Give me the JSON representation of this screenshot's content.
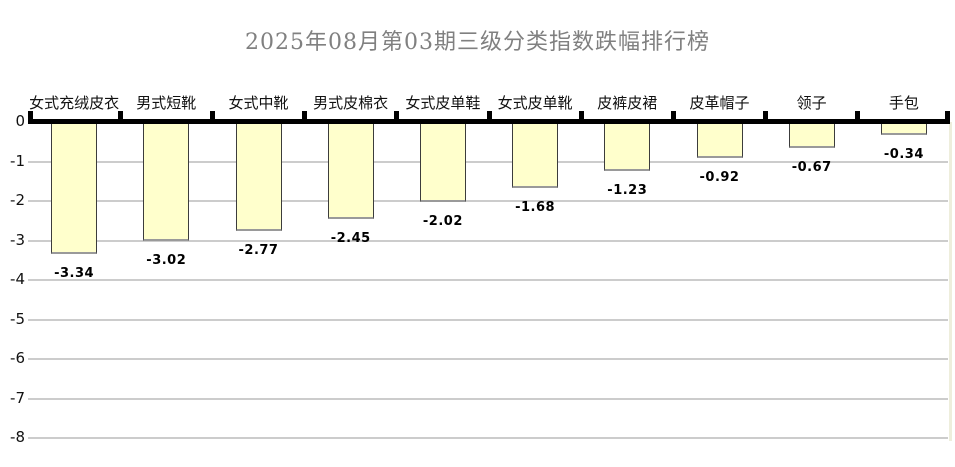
{
  "chart_data": {
    "type": "bar",
    "title": "2025年08月第03期三级分类指数跌幅排行榜",
    "categories": [
      "女式充绒皮衣",
      "男式短靴",
      "女式中靴",
      "男式皮棉衣",
      "女式皮单鞋",
      "女式皮单靴",
      "皮裤皮裙",
      "皮革帽子",
      "领子",
      "手包"
    ],
    "values": [
      -3.34,
      -3.02,
      -2.77,
      -2.45,
      -2.02,
      -1.68,
      -1.23,
      -0.92,
      -0.67,
      -0.34
    ],
    "value_labels": [
      "-3.34",
      "-3.02",
      "-2.77",
      "-2.45",
      "-2.02",
      "-1.68",
      "-1.23",
      "-0.92",
      "-0.67",
      "-0.34"
    ],
    "xlabel": "",
    "ylabel": "",
    "ylim": [
      0,
      -8
    ],
    "ytick_labels": [
      "0",
      "-1",
      "-2",
      "-3",
      "-4",
      "-5",
      "-6",
      "-7",
      "-8"
    ],
    "grid": true,
    "legend_position": "none",
    "bar_orientation": "vertical-down",
    "colors": {
      "bar_fill": "#FFFFCC",
      "bar_border": "#3c3c3c",
      "bar_border_bottom": "#9a9a9a",
      "axis": "#000000",
      "gridline": "#cccccc",
      "title_text": "#808080",
      "label_text": "#000000",
      "plot_right_edge": "#eeeedc",
      "background": "#ffffff"
    }
  }
}
